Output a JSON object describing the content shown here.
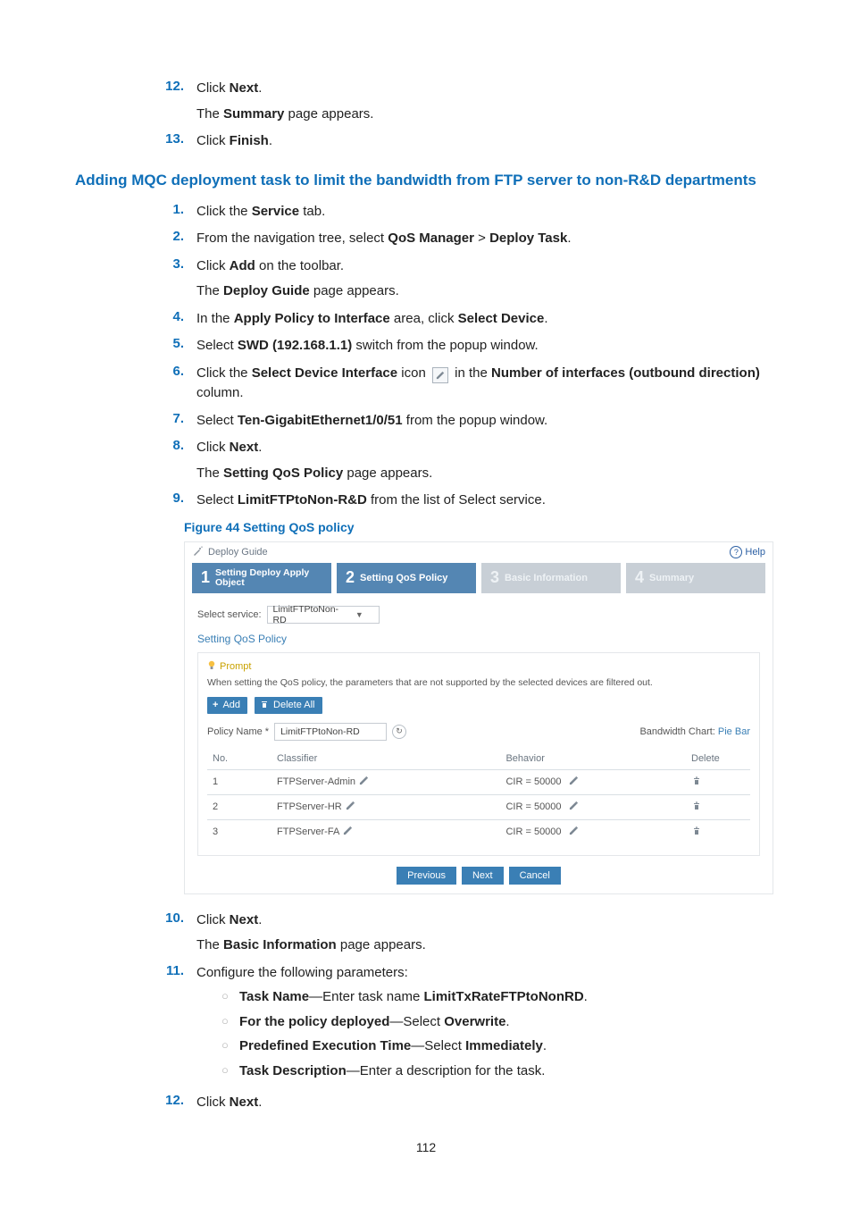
{
  "pre_steps": [
    {
      "n": "12.",
      "line": "Click <b>Next</b>.",
      "after": "The <b>Summary</b> page appears."
    },
    {
      "n": "13.",
      "line": "Click <b>Finish</b>."
    }
  ],
  "h3": "Adding MQC deployment task to limit the bandwidth from FTP server to non-R&D departments",
  "steps": [
    {
      "n": "1.",
      "line": "Click the <b>Service</b> tab."
    },
    {
      "n": "2.",
      "line": "From the navigation tree, select <b>QoS Manager</b> > <b>Deploy Task</b>."
    },
    {
      "n": "3.",
      "line": "Click <b>Add</b> on the toolbar.",
      "after": "The <b>Deploy Guide</b> page appears."
    },
    {
      "n": "4.",
      "line": "In the <b>Apply Policy to Interface</b> area, click <b>Select Device</b>."
    },
    {
      "n": "5.",
      "line": "Select <b>SWD (192.168.1.1)</b> switch from the popup window."
    },
    {
      "n": "6.",
      "line": "Click the <b>Select Device Interface</b> icon {EDIT} in the <b>Number of interfaces (outbound direction)</b> column."
    },
    {
      "n": "7.",
      "line": "Select <b>Ten-GigabitEthernet1/0/51</b> from the popup window."
    },
    {
      "n": "8.",
      "line": "Click <b>Next</b>.",
      "after": "The <b>Setting QoS Policy</b> page appears."
    },
    {
      "n": "9.",
      "line": "Select <b>LimitFTPtoNon-R&D</b> from the list of Select service."
    }
  ],
  "figcap": "Figure 44 Setting QoS policy",
  "shot": {
    "title": "Deploy Guide",
    "help": "Help",
    "stepbar": [
      {
        "n": "1",
        "label": "Setting Deploy Apply Object",
        "twoline": true,
        "dim": false
      },
      {
        "n": "2",
        "label": "Setting QoS Policy",
        "twoline": false,
        "dim": false
      },
      {
        "n": "3",
        "label": "Basic Information",
        "twoline": false,
        "dim": true
      },
      {
        "n": "4",
        "label": "Summary",
        "twoline": false,
        "dim": true
      }
    ],
    "select_label": "Select service:",
    "select_value": "LimitFTPtoNon-RD",
    "section_title": "Setting QoS Policy",
    "prompt_title": "Prompt",
    "prompt_text": "When setting the QoS policy, the parameters that are not supported by the selected devices are filtered out.",
    "btn_add": "Add",
    "btn_deleteall": "Delete All",
    "policy_label": "Policy Name *",
    "policy_value": "LimitFTPtoNon-RD",
    "bw_label": "Bandwidth Chart: ",
    "bw_pie": "Pie",
    "bw_bar": "Bar",
    "cols": {
      "no": "No.",
      "cls": "Classifier",
      "beh": "Behavior",
      "del": "Delete"
    },
    "rows": [
      {
        "no": "1",
        "cls": "FTPServer-Admin",
        "beh": "CIR = 50000"
      },
      {
        "no": "2",
        "cls": "FTPServer-HR",
        "beh": "CIR = 50000"
      },
      {
        "no": "3",
        "cls": "FTPServer-FA",
        "beh": "CIR = 50000"
      }
    ],
    "nav": {
      "prev": "Previous",
      "next": "Next",
      "cancel": "Cancel"
    }
  },
  "post_steps": [
    {
      "n": "10.",
      "line": "Click <b>Next</b>.",
      "after": "The <b>Basic Information</b> page appears."
    },
    {
      "n": "11.",
      "line": "Configure the following parameters:",
      "subs": [
        "<b>Task Name</b>—Enter task name <b>LimitTxRateFTPtoNonRD</b>.",
        "<b>For the policy deployed</b>—Select <b>Overwrite</b>.",
        "<b>Predefined Execution Time</b>—Select <b>Immediately</b>.",
        "<b>Task Description</b>—Enter a description for the task."
      ]
    },
    {
      "n": "12.",
      "line": "Click <b>Next</b>."
    }
  ],
  "pagenum": "112",
  "colors": {
    "link_blue": "#0f6fb8",
    "accent_blue": "#3a7fb5",
    "step_bg": "#5486b3",
    "step_dim": "#c8cfd6",
    "panel_border": "#e4e7ea",
    "table_sep": "#d9dfe4",
    "prompt_yellow": "#c9a200"
  }
}
